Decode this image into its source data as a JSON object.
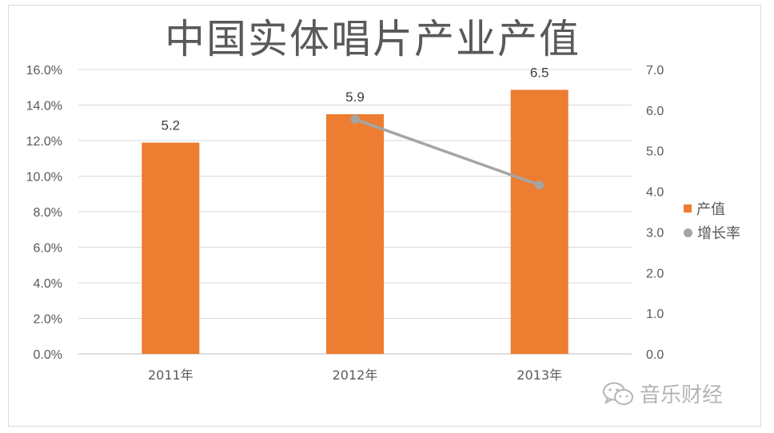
{
  "chart_data": {
    "type": "bar",
    "title": "中国实体唱片产业产值",
    "categories": [
      "2011年",
      "2012年",
      "2013年"
    ],
    "series": [
      {
        "name": "产值",
        "kind": "bar",
        "axis": "right",
        "values": [
          5.2,
          5.9,
          6.5
        ],
        "color": "#ed7d31"
      },
      {
        "name": "增长率",
        "kind": "line",
        "axis": "left",
        "values": [
          null,
          13.2,
          9.5
        ],
        "color": "#a5a5a5"
      }
    ],
    "data_labels": [
      "5.2",
      "5.9",
      "6.5"
    ],
    "left_axis": {
      "min": 0,
      "max": 16,
      "step": 2,
      "tick_labels": [
        "0.0%",
        "2.0%",
        "4.0%",
        "6.0%",
        "8.0%",
        "10.0%",
        "12.0%",
        "14.0%",
        "16.0%"
      ]
    },
    "right_axis": {
      "min": 0,
      "max": 7,
      "step": 1,
      "tick_labels": [
        "0.0",
        "1.0",
        "2.0",
        "3.0",
        "4.0",
        "5.0",
        "6.0",
        "7.0"
      ]
    },
    "grid": true,
    "legend_position": "right"
  },
  "watermark": {
    "text": "音乐财经"
  }
}
